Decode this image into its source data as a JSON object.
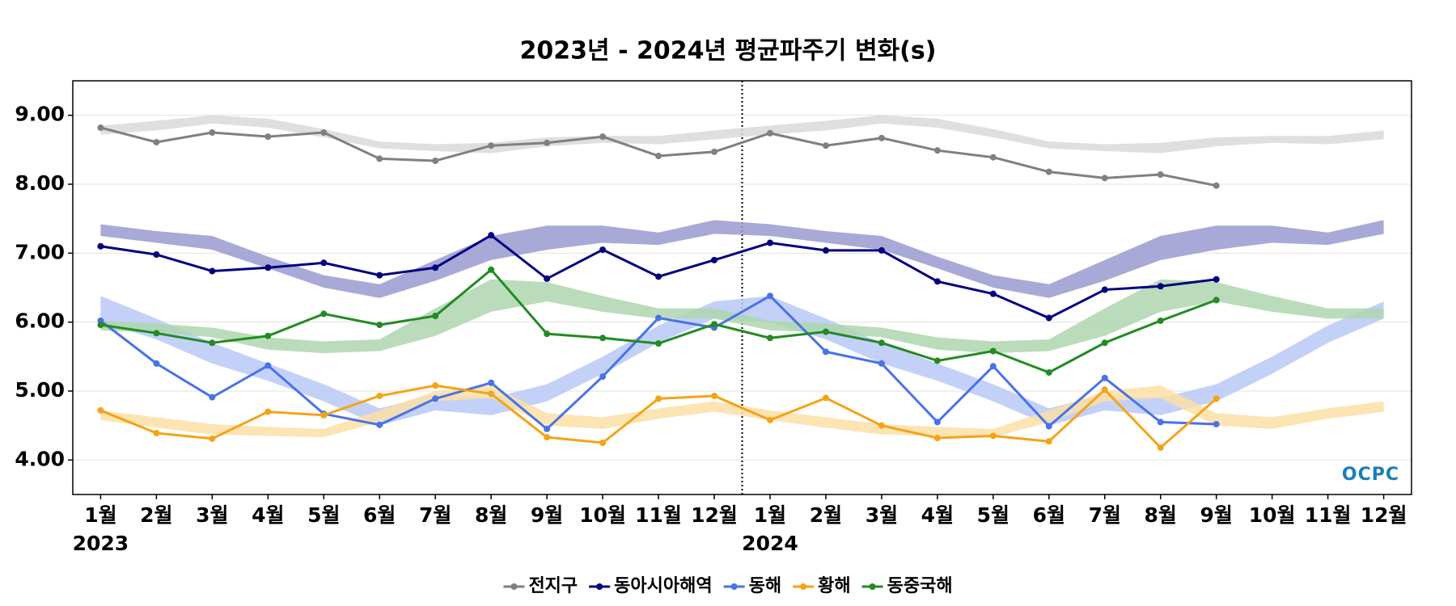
{
  "chart_data": {
    "type": "line",
    "title": "2023년 - 2024년 평균파주기 변화(s)",
    "categories": [
      "1월",
      "2월",
      "3월",
      "4월",
      "5월",
      "6월",
      "7월",
      "8월",
      "9월",
      "10월",
      "11월",
      "12월",
      "1월",
      "2월",
      "3월",
      "4월",
      "5월",
      "6월",
      "7월",
      "8월",
      "9월",
      "10월",
      "11월",
      "12월"
    ],
    "years": [
      "2023",
      "2024"
    ],
    "ylim": [
      3.5,
      9.5
    ],
    "yticks": [
      {
        "value": 4,
        "label": "4.00"
      },
      {
        "value": 5,
        "label": "5.00"
      },
      {
        "value": 6,
        "label": "6.00"
      },
      {
        "value": 7,
        "label": "7.00"
      },
      {
        "value": 8,
        "label": "8.00"
      },
      {
        "value": 9,
        "label": "9.00"
      }
    ],
    "grid": true,
    "legend": "bottom",
    "watermark": "OCPC",
    "series": [
      {
        "name": "전지구",
        "color": "#808080",
        "band_color": "#d9d9d9",
        "values": [
          8.82,
          8.61,
          8.75,
          8.69,
          8.75,
          8.37,
          8.34,
          8.56,
          8.6,
          8.69,
          8.41,
          8.47,
          8.74,
          8.56,
          8.67,
          8.49,
          8.39,
          8.18,
          8.09,
          8.14,
          7.98,
          null,
          null,
          null
        ],
        "band_low": [
          8.72,
          8.78,
          8.88,
          8.82,
          8.68,
          8.52,
          8.48,
          8.45,
          8.55,
          8.6,
          8.58,
          8.65,
          8.72,
          8.78,
          8.88,
          8.82,
          8.68,
          8.52,
          8.48,
          8.45,
          8.55,
          8.6,
          8.58,
          8.65
        ],
        "band_high": [
          8.85,
          8.92,
          9.0,
          8.95,
          8.8,
          8.62,
          8.58,
          8.6,
          8.68,
          8.7,
          8.7,
          8.78,
          8.85,
          8.92,
          9.0,
          8.95,
          8.8,
          8.62,
          8.58,
          8.6,
          8.68,
          8.7,
          8.7,
          8.78
        ]
      },
      {
        "name": "동아시아해역",
        "color": "#000080",
        "band_color": "#9a9ad0",
        "values": [
          7.1,
          6.98,
          6.74,
          6.79,
          6.86,
          6.68,
          6.79,
          7.26,
          6.63,
          7.05,
          6.66,
          6.9,
          7.15,
          7.04,
          7.04,
          6.59,
          6.41,
          6.06,
          6.47,
          6.52,
          6.62,
          null,
          null,
          null
        ],
        "band_low": [
          7.25,
          7.15,
          7.05,
          6.78,
          6.5,
          6.35,
          6.6,
          6.9,
          7.05,
          7.15,
          7.12,
          7.28,
          7.25,
          7.15,
          7.05,
          6.78,
          6.5,
          6.35,
          6.6,
          6.9,
          7.05,
          7.15,
          7.12,
          7.28
        ],
        "band_high": [
          7.42,
          7.32,
          7.25,
          6.95,
          6.68,
          6.55,
          6.9,
          7.25,
          7.4,
          7.4,
          7.3,
          7.48,
          7.42,
          7.32,
          7.25,
          6.95,
          6.68,
          6.55,
          6.9,
          7.25,
          7.4,
          7.4,
          7.3,
          7.48
        ]
      },
      {
        "name": "동해",
        "color": "#4a72e8",
        "band_color": "#b9c9f8",
        "values": [
          6.02,
          5.4,
          4.91,
          5.37,
          4.67,
          4.51,
          4.89,
          5.12,
          4.45,
          5.21,
          6.06,
          5.92,
          6.38,
          5.57,
          5.4,
          4.55,
          5.36,
          4.49,
          5.19,
          4.55,
          4.52,
          null,
          null,
          null
        ],
        "band_low": [
          6.0,
          5.75,
          5.4,
          5.15,
          4.85,
          4.5,
          4.72,
          4.65,
          4.85,
          5.25,
          5.7,
          6.05,
          6.0,
          5.75,
          5.4,
          5.15,
          4.85,
          4.5,
          4.72,
          4.65,
          4.85,
          5.25,
          5.7,
          6.05
        ],
        "band_high": [
          6.38,
          6.05,
          5.7,
          5.4,
          5.1,
          4.75,
          4.95,
          4.9,
          5.1,
          5.5,
          5.95,
          6.3,
          6.38,
          6.05,
          5.7,
          5.4,
          5.1,
          4.75,
          4.95,
          4.9,
          5.1,
          5.5,
          5.95,
          6.3
        ]
      },
      {
        "name": "황해",
        "color": "#f5a316",
        "band_color": "#fbdfa6",
        "values": [
          4.72,
          4.39,
          4.31,
          4.7,
          4.65,
          4.93,
          5.08,
          4.96,
          4.33,
          4.25,
          4.89,
          4.93,
          4.58,
          4.9,
          4.5,
          4.32,
          4.35,
          4.27,
          5.02,
          4.18,
          4.89,
          null,
          null,
          null
        ],
        "band_low": [
          4.58,
          4.47,
          4.37,
          4.35,
          4.33,
          4.55,
          4.85,
          4.9,
          4.5,
          4.45,
          4.6,
          4.7,
          4.58,
          4.47,
          4.37,
          4.35,
          4.33,
          4.55,
          4.85,
          4.9,
          4.5,
          4.45,
          4.6,
          4.7
        ],
        "band_high": [
          4.72,
          4.62,
          4.52,
          4.48,
          4.45,
          4.72,
          5.0,
          5.08,
          4.68,
          4.62,
          4.75,
          4.85,
          4.72,
          4.62,
          4.52,
          4.48,
          4.45,
          4.72,
          5.0,
          5.08,
          4.68,
          4.62,
          4.75,
          4.85
        ]
      },
      {
        "name": "동중국해",
        "color": "#228b22",
        "band_color": "#aed6ae",
        "values": [
          5.96,
          5.84,
          5.7,
          5.8,
          6.12,
          5.96,
          6.09,
          6.76,
          5.83,
          5.77,
          5.69,
          5.97,
          5.77,
          5.86,
          5.7,
          5.44,
          5.58,
          5.27,
          5.7,
          6.02,
          6.32,
          null,
          null,
          null
        ],
        "band_low": [
          5.88,
          5.85,
          5.78,
          5.6,
          5.55,
          5.58,
          5.8,
          6.15,
          6.3,
          6.15,
          6.05,
          6.05,
          5.88,
          5.85,
          5.78,
          5.6,
          5.55,
          5.58,
          5.8,
          6.15,
          6.3,
          6.15,
          6.05,
          6.05
        ],
        "band_high": [
          6.02,
          5.98,
          5.92,
          5.78,
          5.72,
          5.75,
          6.2,
          6.62,
          6.58,
          6.38,
          6.2,
          6.2,
          6.02,
          5.98,
          5.92,
          5.78,
          5.72,
          5.75,
          6.2,
          6.62,
          6.58,
          6.38,
          6.2,
          6.2
        ]
      }
    ]
  }
}
